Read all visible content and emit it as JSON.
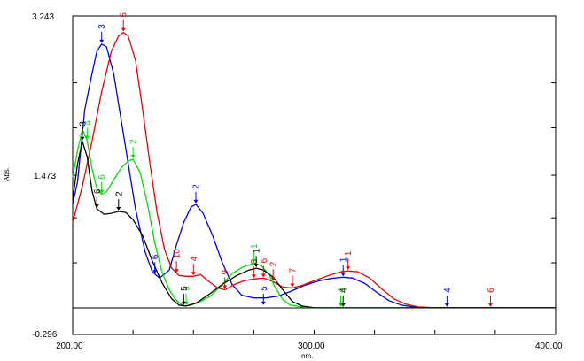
{
  "chart_data": {
    "type": "line",
    "xlabel": "nm.",
    "ylabel": "Abs.",
    "xlim": [
      200,
      400
    ],
    "ylim": [
      -0.296,
      3.243
    ],
    "x_tick_labels": [
      {
        "value": 200,
        "label": "200.00"
      },
      {
        "value": 300,
        "label": "300.00"
      },
      {
        "value": 400,
        "label": "400.00"
      }
    ],
    "y_tick_labels": [
      {
        "value": 3.243,
        "label": "3.243"
      },
      {
        "value": 1.473,
        "label": "1.473"
      },
      {
        "value": -0.296,
        "label": "-0.296"
      }
    ],
    "baseline": 0.0,
    "series": [
      {
        "color": "#0000ee",
        "points": [
          [
            200,
            1.15
          ],
          [
            202,
            1.4
          ],
          [
            205,
            2.2
          ],
          [
            208,
            2.6
          ],
          [
            210,
            2.85
          ],
          [
            212,
            2.93
          ],
          [
            214,
            2.9
          ],
          [
            217,
            2.6
          ],
          [
            220,
            2.1
          ],
          [
            223,
            1.6
          ],
          [
            226,
            1.1
          ],
          [
            230,
            0.62
          ],
          [
            233,
            0.4
          ],
          [
            236,
            0.33
          ],
          [
            240,
            0.42
          ],
          [
            243,
            0.7
          ],
          [
            246,
            0.95
          ],
          [
            249,
            1.12
          ],
          [
            251,
            1.15
          ],
          [
            254,
            1.05
          ],
          [
            258,
            0.8
          ],
          [
            262,
            0.5
          ],
          [
            266,
            0.26
          ],
          [
            270,
            0.14
          ],
          [
            275,
            0.11
          ],
          [
            280,
            0.11
          ],
          [
            285,
            0.13
          ],
          [
            290,
            0.18
          ],
          [
            296,
            0.25
          ],
          [
            302,
            0.3
          ],
          [
            308,
            0.33
          ],
          [
            312,
            0.34
          ],
          [
            316,
            0.33
          ],
          [
            321,
            0.27
          ],
          [
            326,
            0.17
          ],
          [
            331,
            0.08
          ],
          [
            336,
            0.03
          ],
          [
            341,
            0.01
          ],
          [
            350,
            0
          ],
          [
            400,
            0
          ]
        ]
      },
      {
        "color": "#ee0000",
        "points": [
          [
            200,
            0.95
          ],
          [
            204,
            1.35
          ],
          [
            208,
            1.85
          ],
          [
            212,
            2.4
          ],
          [
            216,
            2.85
          ],
          [
            219,
            3.02
          ],
          [
            221,
            3.06
          ],
          [
            223,
            3.02
          ],
          [
            226,
            2.75
          ],
          [
            229,
            2.2
          ],
          [
            232,
            1.6
          ],
          [
            235,
            1.05
          ],
          [
            238,
            0.65
          ],
          [
            241,
            0.44
          ],
          [
            244,
            0.36
          ],
          [
            247,
            0.35
          ],
          [
            250,
            0.35
          ],
          [
            253,
            0.37
          ],
          [
            256,
            0.3
          ],
          [
            260,
            0.22
          ],
          [
            263,
            0.2
          ],
          [
            267,
            0.26
          ],
          [
            271,
            0.3
          ],
          [
            275,
            0.32
          ],
          [
            279,
            0.33
          ],
          [
            283,
            0.29
          ],
          [
            287,
            0.23
          ],
          [
            291,
            0.22
          ],
          [
            295,
            0.25
          ],
          [
            300,
            0.3
          ],
          [
            306,
            0.36
          ],
          [
            311,
            0.4
          ],
          [
            314,
            0.41
          ],
          [
            318,
            0.4
          ],
          [
            323,
            0.33
          ],
          [
            328,
            0.21
          ],
          [
            333,
            0.1
          ],
          [
            338,
            0.04
          ],
          [
            343,
            0.01
          ],
          [
            350,
            0
          ],
          [
            400,
            0
          ]
        ]
      },
      {
        "color": "#00dd00",
        "points": [
          [
            200,
            1.45
          ],
          [
            202,
            1.75
          ],
          [
            204,
            1.98
          ],
          [
            206,
            1.86
          ],
          [
            208,
            1.55
          ],
          [
            210,
            1.32
          ],
          [
            212,
            1.26
          ],
          [
            214,
            1.29
          ],
          [
            217,
            1.42
          ],
          [
            220,
            1.55
          ],
          [
            223,
            1.63
          ],
          [
            225,
            1.65
          ],
          [
            228,
            1.5
          ],
          [
            231,
            1.15
          ],
          [
            234,
            0.72
          ],
          [
            237,
            0.4
          ],
          [
            240,
            0.2
          ],
          [
            243,
            0.08
          ],
          [
            246,
            0.02
          ],
          [
            249,
            0.03
          ],
          [
            253,
            0.07
          ],
          [
            257,
            0.13
          ],
          [
            261,
            0.23
          ],
          [
            266,
            0.38
          ],
          [
            271,
            0.46
          ],
          [
            275,
            0.49
          ],
          [
            278,
            0.47
          ],
          [
            281,
            0.38
          ],
          [
            284,
            0.22
          ],
          [
            287,
            0.09
          ],
          [
            290,
            0.03
          ],
          [
            295,
            0.01
          ],
          [
            300,
            0
          ],
          [
            400,
            0
          ]
        ]
      },
      {
        "color": "#000000",
        "points": [
          [
            200,
            1.2
          ],
          [
            202,
            1.6
          ],
          [
            204,
            1.85
          ],
          [
            206,
            1.68
          ],
          [
            208,
            1.3
          ],
          [
            210,
            1.1
          ],
          [
            213,
            1.04
          ],
          [
            216,
            1.05
          ],
          [
            219,
            1.07
          ],
          [
            222,
            1.06
          ],
          [
            225,
            0.98
          ],
          [
            229,
            0.8
          ],
          [
            233,
            0.52
          ],
          [
            237,
            0.28
          ],
          [
            241,
            0.1
          ],
          [
            244,
            0.03
          ],
          [
            247,
            0.02
          ],
          [
            251,
            0.05
          ],
          [
            256,
            0.14
          ],
          [
            262,
            0.26
          ],
          [
            268,
            0.36
          ],
          [
            273,
            0.42
          ],
          [
            276,
            0.44
          ],
          [
            279,
            0.42
          ],
          [
            283,
            0.34
          ],
          [
            287,
            0.2
          ],
          [
            291,
            0.07
          ],
          [
            295,
            0.02
          ],
          [
            300,
            0
          ],
          [
            400,
            0
          ]
        ]
      }
    ],
    "markers": [
      {
        "label": "3",
        "x": 212,
        "y": 2.93,
        "color": "#0000ee"
      },
      {
        "label": "2",
        "x": 251,
        "y": 1.15,
        "color": "#0000ee"
      },
      {
        "label": "6",
        "x": 234,
        "y": 0.37,
        "color": "#0000ee"
      },
      {
        "label": "5",
        "x": 279,
        "y": 0.02,
        "color": "#0000ee"
      },
      {
        "label": "1",
        "x": 312,
        "y": 0.34,
        "color": "#0000ee"
      },
      {
        "label": "4",
        "x": 355,
        "y": 0.0,
        "color": "#0000ee"
      },
      {
        "label": "5",
        "x": 221,
        "y": 3.06,
        "color": "#ee0000"
      },
      {
        "label": "10",
        "x": 243,
        "y": 0.38,
        "color": "#ee0000"
      },
      {
        "label": "4",
        "x": 250,
        "y": 0.35,
        "color": "#ee0000"
      },
      {
        "label": "9",
        "x": 263,
        "y": 0.2,
        "color": "#ee0000"
      },
      {
        "label": "8",
        "x": 275,
        "y": 0.32,
        "color": "#ee0000"
      },
      {
        "label": "6",
        "x": 279,
        "y": 0.33,
        "color": "#ee0000"
      },
      {
        "label": "2",
        "x": 283,
        "y": 0.29,
        "color": "#ee0000"
      },
      {
        "label": "7",
        "x": 291,
        "y": 0.22,
        "color": "#ee0000"
      },
      {
        "label": "1",
        "x": 314,
        "y": 0.41,
        "color": "#ee0000"
      },
      {
        "label": "6",
        "x": 373,
        "y": 0.0,
        "color": "#ee0000"
      },
      {
        "label": "4",
        "x": 206,
        "y": 1.86,
        "color": "#00dd00"
      },
      {
        "label": "6",
        "x": 212,
        "y": 1.26,
        "color": "#00dd00"
      },
      {
        "label": "2",
        "x": 225,
        "y": 1.65,
        "color": "#00dd00"
      },
      {
        "label": "5",
        "x": 247,
        "y": 0.02,
        "color": "#00dd00"
      },
      {
        "label": "1",
        "x": 275,
        "y": 0.49,
        "color": "#00dd00"
      },
      {
        "label": "4",
        "x": 311,
        "y": 0.0,
        "color": "#00dd00"
      },
      {
        "label": "3",
        "x": 204,
        "y": 1.85,
        "color": "#000000"
      },
      {
        "label": "6",
        "x": 210,
        "y": 1.1,
        "color": "#000000"
      },
      {
        "label": "2",
        "x": 219,
        "y": 1.07,
        "color": "#000000"
      },
      {
        "label": "5",
        "x": 246,
        "y": 0.02,
        "color": "#000000"
      },
      {
        "label": "1",
        "x": 276,
        "y": 0.44,
        "color": "#000000"
      },
      {
        "label": "4",
        "x": 312,
        "y": 0.0,
        "color": "#000000"
      }
    ]
  }
}
